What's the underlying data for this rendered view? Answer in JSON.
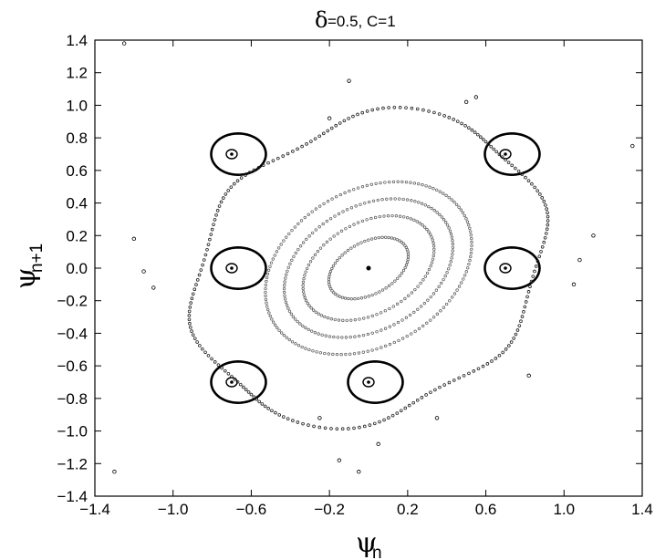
{
  "chart_data": {
    "type": "scatter",
    "title_symbol": "δ",
    "title_rest": "=0.5, C=1",
    "xlabel_symbol": "ψ",
    "xlabel_sub": "n",
    "ylabel_symbol": "ψ",
    "ylabel_sub": "n+1",
    "xlim": [
      -1.4,
      1.4
    ],
    "ylim": [
      -1.4,
      1.4
    ],
    "x_ticks": [
      -1.4,
      -1.0,
      -0.6,
      -0.2,
      0.2,
      0.6,
      1.0,
      1.4
    ],
    "x_tick_labels": [
      "−1.4",
      "−1.0",
      "−0.6",
      "−0.2",
      "0.2",
      "0.6",
      "1.0",
      "1.4"
    ],
    "y_ticks": [
      1.4,
      1.2,
      1.0,
      0.8,
      0.6,
      0.4,
      0.2,
      0.0,
      -0.2,
      -0.4,
      -0.6,
      -0.8,
      -1.0,
      -1.2,
      -1.4
    ],
    "y_tick_labels": [
      "1.4",
      "1.2",
      "1.0",
      "0.8",
      "0.6",
      "0.4",
      "0.2",
      "0.0",
      "−0.2",
      "−0.4",
      "−0.6",
      "−0.8",
      "−1.0",
      "−1.2",
      "−1.4"
    ],
    "grid": false,
    "marker": "small open circles",
    "center_point": [
      0.0,
      0.0
    ],
    "invariant_tori_approx": [
      {
        "center": [
          0.0,
          0.0
        ],
        "a": 0.22,
        "b": 0.16
      },
      {
        "center": [
          0.0,
          0.0
        ],
        "a": 0.36,
        "b": 0.28
      },
      {
        "center": [
          0.0,
          0.0
        ],
        "a": 0.46,
        "b": 0.38
      },
      {
        "center": [
          0.0,
          0.0
        ],
        "a": 0.56,
        "b": 0.48
      }
    ],
    "resonance_islands_approx": [
      {
        "center": [
          -0.7,
          0.7
        ]
      },
      {
        "center": [
          0.7,
          0.7
        ]
      },
      {
        "center": [
          -0.7,
          0.0
        ]
      },
      {
        "center": [
          0.7,
          0.0
        ]
      },
      {
        "center": [
          -0.7,
          -0.7
        ]
      },
      {
        "center": [
          0.0,
          -0.7
        ]
      }
    ],
    "scattered_points_approx": [
      [
        -1.3,
        -1.25
      ],
      [
        -1.25,
        1.38
      ],
      [
        -1.2,
        0.18
      ],
      [
        -1.15,
        -0.02
      ],
      [
        -1.1,
        -0.12
      ],
      [
        -0.1,
        1.15
      ],
      [
        1.35,
        0.75
      ],
      [
        1.15,
        0.2
      ],
      [
        1.05,
        -0.1
      ],
      [
        1.08,
        0.05
      ],
      [
        0.82,
        -0.66
      ],
      [
        -0.05,
        -1.25
      ],
      [
        -0.15,
        -1.18
      ],
      [
        0.05,
        -1.08
      ],
      [
        -0.25,
        -0.92
      ],
      [
        0.35,
        -0.92
      ],
      [
        0.55,
        1.05
      ],
      [
        0.5,
        1.02
      ],
      [
        -0.2,
        0.92
      ]
    ]
  }
}
